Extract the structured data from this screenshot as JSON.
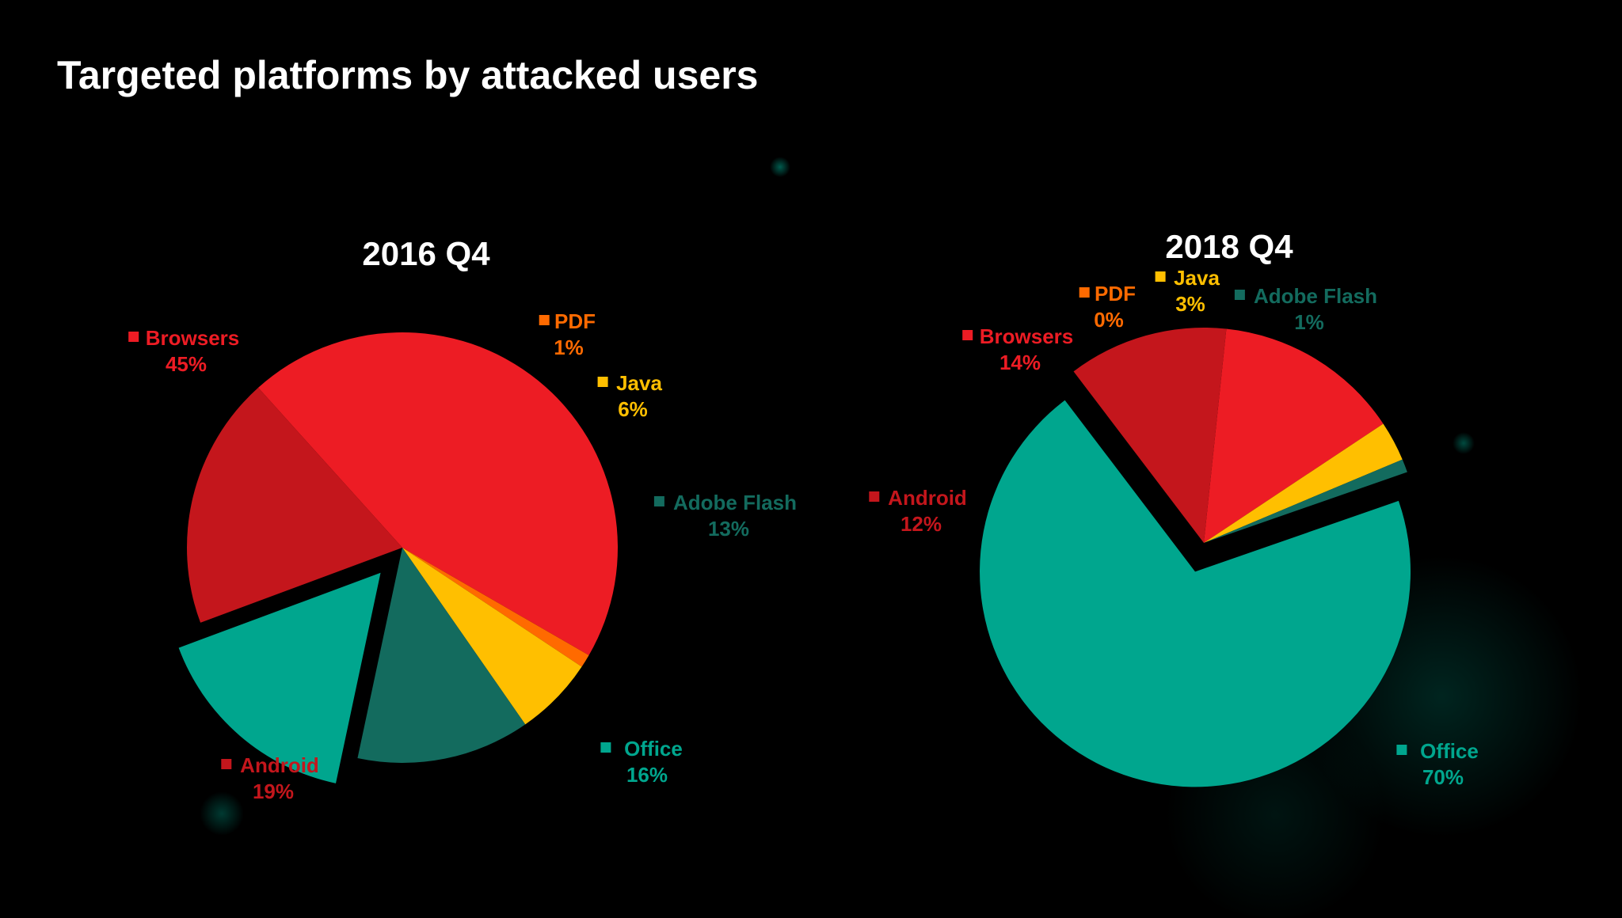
{
  "title": "Targeted platforms by attacked users",
  "colors": {
    "Browsers": "#ed1c24",
    "PDF": "#ff6a00",
    "Java": "#ffbf00",
    "Adobe Flash": "#136b5e",
    "Office": "#00a68e",
    "Android": "#c4161c",
    "background": "#000000"
  },
  "chart_data": [
    {
      "type": "pie",
      "title": "2016 Q4",
      "categories": [
        "Browsers",
        "PDF",
        "Java",
        "Adobe Flash",
        "Office",
        "Android"
      ],
      "values": [
        45,
        1,
        6,
        13,
        16,
        19
      ],
      "value_labels": [
        "45%",
        "1%",
        "6%",
        "13%",
        "16%",
        "19%"
      ],
      "exploded": [
        "Office"
      ],
      "labels_outside": true
    },
    {
      "type": "pie",
      "title": "2018 Q4",
      "categories": [
        "Browsers",
        "PDF",
        "Java",
        "Adobe Flash",
        "Office",
        "Android"
      ],
      "values": [
        14,
        0,
        3,
        1,
        70,
        12
      ],
      "value_labels": [
        "14%",
        "0%",
        "3%",
        "1%",
        "70%",
        "12%"
      ],
      "exploded": [
        "Office"
      ],
      "labels_outside": true
    }
  ]
}
